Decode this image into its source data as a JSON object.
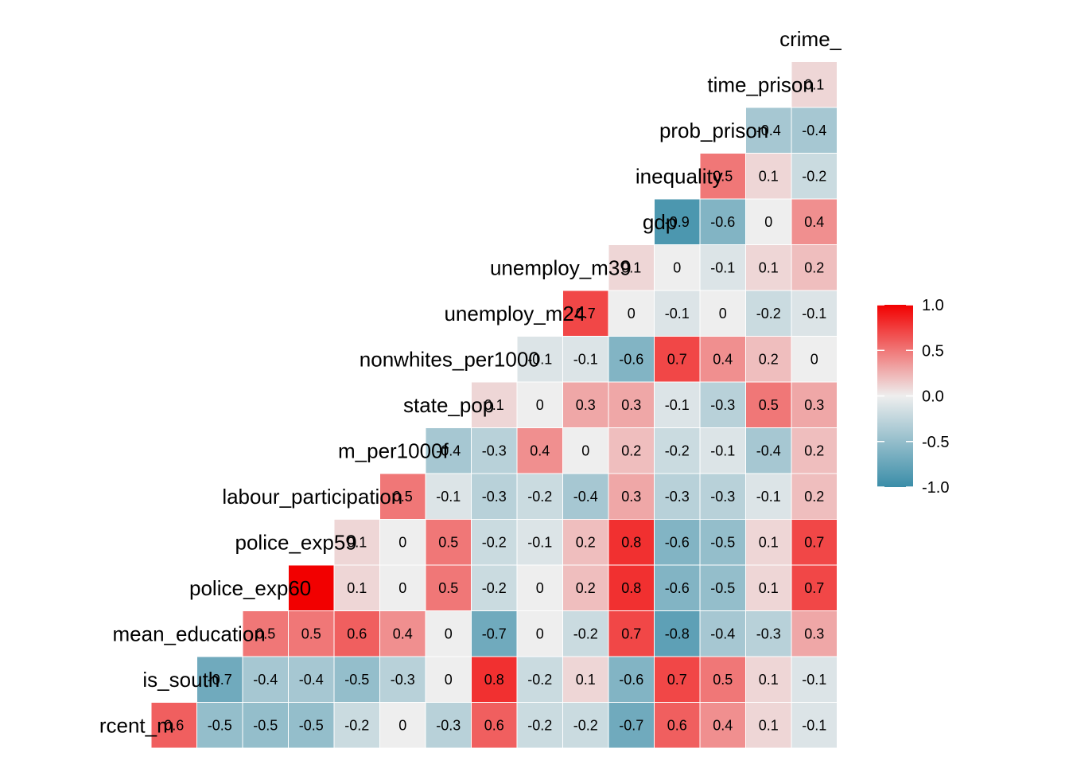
{
  "chart_data": {
    "type": "heatmap",
    "title": "",
    "xlabel": "",
    "ylabel": "",
    "variables": [
      "rcent_m",
      "is_south",
      "mean_education",
      "police_exp60",
      "police_exp59",
      "labour_participation",
      "m_per1000f",
      "state_pop",
      "nonwhites_per1000",
      "unemploy_m24",
      "unemploy_m39",
      "gdp",
      "inequality",
      "prob_prison",
      "time_prison",
      "crime_ra"
    ],
    "cells": [
      {
        "row": 0,
        "col": 0,
        "value": 0.6,
        "label": "0.6"
      },
      {
        "row": 0,
        "col": 1,
        "value": -0.5,
        "label": "-0.5"
      },
      {
        "row": 0,
        "col": 2,
        "value": -0.5,
        "label": "-0.5"
      },
      {
        "row": 0,
        "col": 3,
        "value": -0.5,
        "label": "-0.5"
      },
      {
        "row": 0,
        "col": 4,
        "value": -0.2,
        "label": "-0.2"
      },
      {
        "row": 0,
        "col": 5,
        "value": 0,
        "label": "0"
      },
      {
        "row": 0,
        "col": 6,
        "value": -0.3,
        "label": "-0.3"
      },
      {
        "row": 0,
        "col": 7,
        "value": 0.6,
        "label": "0.6"
      },
      {
        "row": 0,
        "col": 8,
        "value": -0.2,
        "label": "-0.2"
      },
      {
        "row": 0,
        "col": 9,
        "value": -0.2,
        "label": "-0.2"
      },
      {
        "row": 0,
        "col": 10,
        "value": -0.7,
        "label": "-0.7"
      },
      {
        "row": 0,
        "col": 11,
        "value": 0.6,
        "label": "0.6"
      },
      {
        "row": 0,
        "col": 12,
        "value": 0.4,
        "label": "0.4"
      },
      {
        "row": 0,
        "col": 13,
        "value": 0.1,
        "label": "0.1"
      },
      {
        "row": 0,
        "col": 14,
        "value": -0.1,
        "label": "-0.1"
      },
      {
        "row": 1,
        "col": 1,
        "value": -0.7,
        "label": "-0.7"
      },
      {
        "row": 1,
        "col": 2,
        "value": -0.4,
        "label": "-0.4"
      },
      {
        "row": 1,
        "col": 3,
        "value": -0.4,
        "label": "-0.4"
      },
      {
        "row": 1,
        "col": 4,
        "value": -0.5,
        "label": "-0.5"
      },
      {
        "row": 1,
        "col": 5,
        "value": -0.3,
        "label": "-0.3"
      },
      {
        "row": 1,
        "col": 6,
        "value": 0,
        "label": "0"
      },
      {
        "row": 1,
        "col": 7,
        "value": 0.8,
        "label": "0.8"
      },
      {
        "row": 1,
        "col": 8,
        "value": -0.2,
        "label": "-0.2"
      },
      {
        "row": 1,
        "col": 9,
        "value": 0.1,
        "label": "0.1"
      },
      {
        "row": 1,
        "col": 10,
        "value": -0.6,
        "label": "-0.6"
      },
      {
        "row": 1,
        "col": 11,
        "value": 0.7,
        "label": "0.7"
      },
      {
        "row": 1,
        "col": 12,
        "value": 0.5,
        "label": "0.5"
      },
      {
        "row": 1,
        "col": 13,
        "value": 0.1,
        "label": "0.1"
      },
      {
        "row": 1,
        "col": 14,
        "value": -0.1,
        "label": "-0.1"
      },
      {
        "row": 2,
        "col": 2,
        "value": 0.5,
        "label": "0.5"
      },
      {
        "row": 2,
        "col": 3,
        "value": 0.5,
        "label": "0.5"
      },
      {
        "row": 2,
        "col": 4,
        "value": 0.6,
        "label": "0.6"
      },
      {
        "row": 2,
        "col": 5,
        "value": 0.4,
        "label": "0.4"
      },
      {
        "row": 2,
        "col": 6,
        "value": 0,
        "label": "0"
      },
      {
        "row": 2,
        "col": 7,
        "value": -0.7,
        "label": "-0.7"
      },
      {
        "row": 2,
        "col": 8,
        "value": 0,
        "label": "0"
      },
      {
        "row": 2,
        "col": 9,
        "value": -0.2,
        "label": "-0.2"
      },
      {
        "row": 2,
        "col": 10,
        "value": 0.7,
        "label": "0.7"
      },
      {
        "row": 2,
        "col": 11,
        "value": -0.8,
        "label": "-0.8"
      },
      {
        "row": 2,
        "col": 12,
        "value": -0.4,
        "label": "-0.4"
      },
      {
        "row": 2,
        "col": 13,
        "value": -0.3,
        "label": "-0.3"
      },
      {
        "row": 2,
        "col": 14,
        "value": 0.3,
        "label": "0.3"
      },
      {
        "row": 3,
        "col": 3,
        "value": 1.0,
        "label": ""
      },
      {
        "row": 3,
        "col": 4,
        "value": 0.1,
        "label": "0.1"
      },
      {
        "row": 3,
        "col": 5,
        "value": 0,
        "label": "0"
      },
      {
        "row": 3,
        "col": 6,
        "value": 0.5,
        "label": "0.5"
      },
      {
        "row": 3,
        "col": 7,
        "value": -0.2,
        "label": "-0.2"
      },
      {
        "row": 3,
        "col": 8,
        "value": 0,
        "label": "0"
      },
      {
        "row": 3,
        "col": 9,
        "value": 0.2,
        "label": "0.2"
      },
      {
        "row": 3,
        "col": 10,
        "value": 0.8,
        "label": "0.8"
      },
      {
        "row": 3,
        "col": 11,
        "value": -0.6,
        "label": "-0.6"
      },
      {
        "row": 3,
        "col": 12,
        "value": -0.5,
        "label": "-0.5"
      },
      {
        "row": 3,
        "col": 13,
        "value": 0.1,
        "label": "0.1"
      },
      {
        "row": 3,
        "col": 14,
        "value": 0.7,
        "label": "0.7"
      },
      {
        "row": 4,
        "col": 4,
        "value": 0.1,
        "label": "0.1"
      },
      {
        "row": 4,
        "col": 5,
        "value": 0,
        "label": "0"
      },
      {
        "row": 4,
        "col": 6,
        "value": 0.5,
        "label": "0.5"
      },
      {
        "row": 4,
        "col": 7,
        "value": -0.2,
        "label": "-0.2"
      },
      {
        "row": 4,
        "col": 8,
        "value": -0.1,
        "label": "-0.1"
      },
      {
        "row": 4,
        "col": 9,
        "value": 0.2,
        "label": "0.2"
      },
      {
        "row": 4,
        "col": 10,
        "value": 0.8,
        "label": "0.8"
      },
      {
        "row": 4,
        "col": 11,
        "value": -0.6,
        "label": "-0.6"
      },
      {
        "row": 4,
        "col": 12,
        "value": -0.5,
        "label": "-0.5"
      },
      {
        "row": 4,
        "col": 13,
        "value": 0.1,
        "label": "0.1"
      },
      {
        "row": 4,
        "col": 14,
        "value": 0.7,
        "label": "0.7"
      },
      {
        "row": 5,
        "col": 5,
        "value": 0.5,
        "label": "0.5"
      },
      {
        "row": 5,
        "col": 6,
        "value": -0.1,
        "label": "-0.1"
      },
      {
        "row": 5,
        "col": 7,
        "value": -0.3,
        "label": "-0.3"
      },
      {
        "row": 5,
        "col": 8,
        "value": -0.2,
        "label": "-0.2"
      },
      {
        "row": 5,
        "col": 9,
        "value": -0.4,
        "label": "-0.4"
      },
      {
        "row": 5,
        "col": 10,
        "value": 0.3,
        "label": "0.3"
      },
      {
        "row": 5,
        "col": 11,
        "value": -0.3,
        "label": "-0.3"
      },
      {
        "row": 5,
        "col": 12,
        "value": -0.3,
        "label": "-0.3"
      },
      {
        "row": 5,
        "col": 13,
        "value": -0.1,
        "label": "-0.1"
      },
      {
        "row": 5,
        "col": 14,
        "value": 0.2,
        "label": "0.2"
      },
      {
        "row": 6,
        "col": 6,
        "value": -0.4,
        "label": "-0.4"
      },
      {
        "row": 6,
        "col": 7,
        "value": -0.3,
        "label": "-0.3"
      },
      {
        "row": 6,
        "col": 8,
        "value": 0.4,
        "label": "0.4"
      },
      {
        "row": 6,
        "col": 9,
        "value": 0,
        "label": "0"
      },
      {
        "row": 6,
        "col": 10,
        "value": 0.2,
        "label": "0.2"
      },
      {
        "row": 6,
        "col": 11,
        "value": -0.2,
        "label": "-0.2"
      },
      {
        "row": 6,
        "col": 12,
        "value": -0.1,
        "label": "-0.1"
      },
      {
        "row": 6,
        "col": 13,
        "value": -0.4,
        "label": "-0.4"
      },
      {
        "row": 6,
        "col": 14,
        "value": 0.2,
        "label": "0.2"
      },
      {
        "row": 7,
        "col": 7,
        "value": 0.1,
        "label": "0.1"
      },
      {
        "row": 7,
        "col": 8,
        "value": 0,
        "label": "0"
      },
      {
        "row": 7,
        "col": 9,
        "value": 0.3,
        "label": "0.3"
      },
      {
        "row": 7,
        "col": 10,
        "value": 0.3,
        "label": "0.3"
      },
      {
        "row": 7,
        "col": 11,
        "value": -0.1,
        "label": "-0.1"
      },
      {
        "row": 7,
        "col": 12,
        "value": -0.3,
        "label": "-0.3"
      },
      {
        "row": 7,
        "col": 13,
        "value": 0.5,
        "label": "0.5"
      },
      {
        "row": 7,
        "col": 14,
        "value": 0.3,
        "label": "0.3"
      },
      {
        "row": 8,
        "col": 8,
        "value": -0.1,
        "label": "-0.1"
      },
      {
        "row": 8,
        "col": 9,
        "value": -0.1,
        "label": "-0.1"
      },
      {
        "row": 8,
        "col": 10,
        "value": -0.6,
        "label": "-0.6"
      },
      {
        "row": 8,
        "col": 11,
        "value": 0.7,
        "label": "0.7"
      },
      {
        "row": 8,
        "col": 12,
        "value": 0.4,
        "label": "0.4"
      },
      {
        "row": 8,
        "col": 13,
        "value": 0.2,
        "label": "0.2"
      },
      {
        "row": 8,
        "col": 14,
        "value": 0,
        "label": "0"
      },
      {
        "row": 9,
        "col": 9,
        "value": 0.7,
        "label": "0.7"
      },
      {
        "row": 9,
        "col": 10,
        "value": 0,
        "label": "0"
      },
      {
        "row": 9,
        "col": 11,
        "value": -0.1,
        "label": "-0.1"
      },
      {
        "row": 9,
        "col": 12,
        "value": 0,
        "label": "0"
      },
      {
        "row": 9,
        "col": 13,
        "value": -0.2,
        "label": "-0.2"
      },
      {
        "row": 9,
        "col": 14,
        "value": -0.1,
        "label": "-0.1"
      },
      {
        "row": 10,
        "col": 10,
        "value": 0.1,
        "label": "0.1"
      },
      {
        "row": 10,
        "col": 11,
        "value": 0,
        "label": "0"
      },
      {
        "row": 10,
        "col": 12,
        "value": -0.1,
        "label": "-0.1"
      },
      {
        "row": 10,
        "col": 13,
        "value": 0.1,
        "label": "0.1"
      },
      {
        "row": 10,
        "col": 14,
        "value": 0.2,
        "label": "0.2"
      },
      {
        "row": 11,
        "col": 11,
        "value": -0.9,
        "label": "-0.9"
      },
      {
        "row": 11,
        "col": 12,
        "value": -0.6,
        "label": "-0.6"
      },
      {
        "row": 11,
        "col": 13,
        "value": 0,
        "label": "0"
      },
      {
        "row": 11,
        "col": 14,
        "value": 0.4,
        "label": "0.4"
      },
      {
        "row": 12,
        "col": 12,
        "value": 0.5,
        "label": "0.5"
      },
      {
        "row": 12,
        "col": 13,
        "value": 0.1,
        "label": "0.1"
      },
      {
        "row": 12,
        "col": 14,
        "value": -0.2,
        "label": "-0.2"
      },
      {
        "row": 13,
        "col": 13,
        "value": -0.4,
        "label": "-0.4"
      },
      {
        "row": 13,
        "col": 14,
        "value": -0.4,
        "label": "-0.4"
      },
      {
        "row": 14,
        "col": 14,
        "value": 0.1,
        "label": "0.1"
      }
    ],
    "color_scale": {
      "low": "#3A8DA8",
      "mid": "#EEEEEE",
      "high": "#F20000",
      "domain": [
        -1,
        1
      ]
    },
    "legend": {
      "placement": "right",
      "ticks": [
        {
          "value": 1.0,
          "label": "1.0"
        },
        {
          "value": 0.5,
          "label": "0.5"
        },
        {
          "value": 0.0,
          "label": "0.0"
        },
        {
          "value": -0.5,
          "label": "-0.5"
        },
        {
          "value": -1.0,
          "label": "-1.0"
        }
      ]
    }
  }
}
